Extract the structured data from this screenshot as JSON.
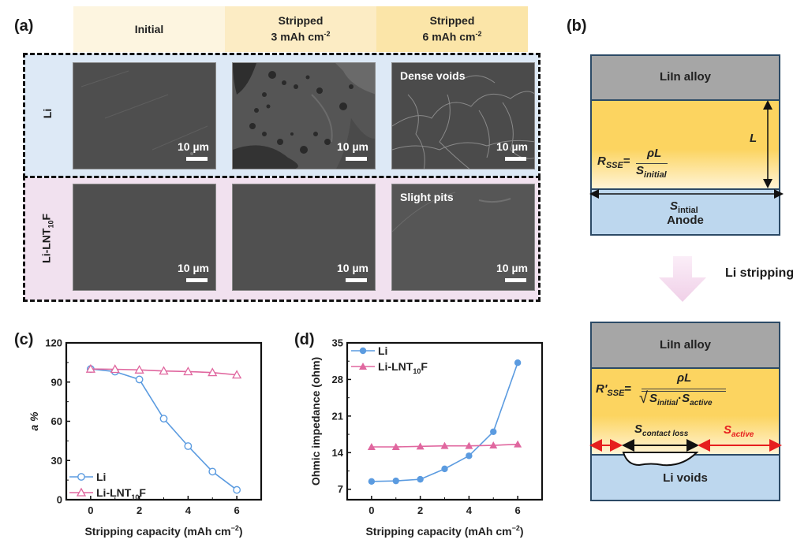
{
  "panels": {
    "a": {
      "label": "(a)",
      "columns": [
        {
          "line1": "Initial",
          "line2": "",
          "sup": ""
        },
        {
          "line1": "Stripped",
          "line2": "3 mAh cm",
          "sup": "-2"
        },
        {
          "line1": "Stripped",
          "line2": "6 mAh cm",
          "sup": "-2"
        }
      ],
      "rows": [
        {
          "label": "Li",
          "label_sub": "",
          "label_suffix": ""
        },
        {
          "label": "Li-LNT",
          "label_sub": "10",
          "label_suffix": "F"
        }
      ],
      "scale_bar_text": "10 µm",
      "notes": {
        "dense_voids": "Dense voids",
        "slight_pits": "Slight pits"
      },
      "colors": {
        "row_li_bg": "#dde9f6",
        "row_lnt_bg": "#f1e1ef",
        "head1": "#fdf5e0",
        "head2": "#fcecc4",
        "head3": "#fbe5a8"
      }
    },
    "b": {
      "label": "(b)",
      "top": {
        "alloy": "LiIn alloy",
        "formula_lhs": "R",
        "formula_lhs_sub": "SSE",
        "formula_num": "ρL",
        "formula_den": "S",
        "formula_den_sub": "initial",
        "L_label": "L",
        "s_label": "S",
        "s_label_sub": "intial",
        "anode": "Anode"
      },
      "arrow_label": "Li stripping",
      "bottom": {
        "alloy": "LiIn alloy",
        "formula_lhs": "R'",
        "formula_lhs_sub": "SSE",
        "formula_num": "ρL",
        "formula_den_a": "S",
        "formula_den_a_sub": "initial",
        "formula_den_b": "S",
        "formula_den_b_sub": "active",
        "contact_loss": "S",
        "contact_loss_sub": "contact loss",
        "active": "S",
        "active_sub": "active",
        "voids": "Li voids"
      },
      "colors": {
        "alloy": "#a6a6a6",
        "sse_top": "#fcd460",
        "sse_bottom": "#fff4d6",
        "anode": "#bdd7ee",
        "border": "#2c4a66",
        "red": "#e61e1e"
      }
    }
  },
  "chart_data": [
    {
      "panel_label": "(c)",
      "type": "line",
      "title": "",
      "xlabel": "Stripping capacity (mAh cm",
      "xlabel_sup": "−2",
      "xlabel_close": ")",
      "ylabel": "a %",
      "xlim": [
        -1,
        7
      ],
      "ylim": [
        0,
        120
      ],
      "xticks": [
        "0",
        "2",
        "4",
        "6"
      ],
      "yticks": [
        "0",
        "30",
        "60",
        "90",
        "120"
      ],
      "x": [
        0,
        1,
        2,
        3,
        4,
        5,
        6
      ],
      "legend_position": "bottom-left",
      "series": [
        {
          "name": "Li",
          "name_sub": "",
          "name_suffix": "",
          "marker": "open-circle",
          "color": "#5b9be0",
          "values": [
            100,
            98,
            92,
            62,
            41,
            21.5,
            7.5
          ]
        },
        {
          "name": "Li-LNT",
          "name_sub": "10",
          "name_suffix": "F",
          "marker": "open-triangle",
          "color": "#e0679f",
          "values": [
            100,
            99.8,
            99.3,
            98.5,
            98,
            97.3,
            95.5
          ]
        }
      ]
    },
    {
      "panel_label": "(d)",
      "type": "line",
      "title": "",
      "xlabel": "Stripping capacity (mAh cm",
      "xlabel_sup": "−2",
      "xlabel_close": ")",
      "ylabel": "Ohmic impedance (ohm)",
      "xlim": [
        -1,
        7
      ],
      "ylim": [
        5,
        35
      ],
      "xticks": [
        "0",
        "2",
        "4",
        "6"
      ],
      "yticks": [
        "7",
        "14",
        "21",
        "28",
        "35"
      ],
      "x": [
        0,
        1,
        2,
        3,
        4,
        5,
        6
      ],
      "legend_position": "top-left",
      "series": [
        {
          "name": "Li",
          "name_sub": "",
          "name_suffix": "",
          "marker": "filled-circle",
          "color": "#5b9be0",
          "values": [
            8.5,
            8.6,
            8.9,
            10.9,
            13.4,
            18.0,
            31.2
          ]
        },
        {
          "name": "Li-LNT",
          "name_sub": "10",
          "name_suffix": "F",
          "marker": "filled-triangle",
          "color": "#e0679f",
          "values": [
            15.1,
            15.1,
            15.2,
            15.3,
            15.3,
            15.4,
            15.6
          ]
        }
      ]
    }
  ]
}
